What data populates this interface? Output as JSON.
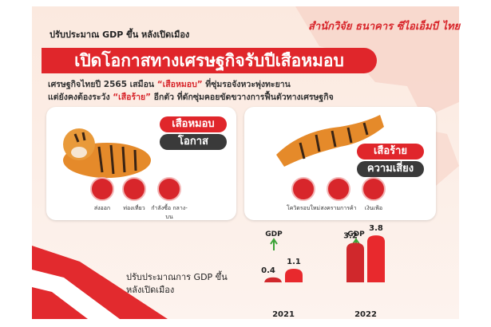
{
  "header": {
    "subtitle": "ปรับประมาณ GDP ขึ้น หลังเปิดเมือง",
    "organization": "สำนักวิจัย ธนาคาร ซีไอเอ็มบี ไทย",
    "title": "เปิดโอกาสทางเศรษฐกิจรับปีเสือหมอบ"
  },
  "intro": [
    [
      "เศรษฐกิจไทยปี 2565 เสมือน ",
      "“เสือหมอบ”",
      " ที่ซุ่มรอจังหวะพุ่งทะยาน"
    ],
    [
      "แต่ยังคงต้องระวัง ",
      "“เสือร้าย”",
      " อีกตัว ที่ดักซุ่มคอยขัดขวางการฟื้นตัวทางเศรษฐกิจ"
    ]
  ],
  "cards": [
    {
      "tag": "เสือหมอบ",
      "label": "โอกาส",
      "items": [
        "ส่งออก",
        "ท่องเที่ยว",
        "กำลังซื้อ กลาง-บน"
      ]
    },
    {
      "tag": "เสือร้าย",
      "label": "ความเสี่ยง",
      "items": [
        "โควิดรอบใหม่",
        "สงครามการค้า",
        "เงินเฟ้อ"
      ]
    }
  ],
  "chart_data": {
    "type": "bar",
    "title": "ปรับประมาณการ GDP ขึ้น หลังเปิดเมือง",
    "categories": [
      "2021",
      "2022"
    ],
    "annotations": [
      "GDP",
      "GDP"
    ],
    "series": [
      {
        "color": "#d0282c",
        "values": [
          0.4,
          3.2
        ]
      },
      {
        "color": "#e8292d",
        "values": [
          1.1,
          3.8
        ]
      }
    ],
    "ylim": [
      -2,
      4
    ]
  }
}
